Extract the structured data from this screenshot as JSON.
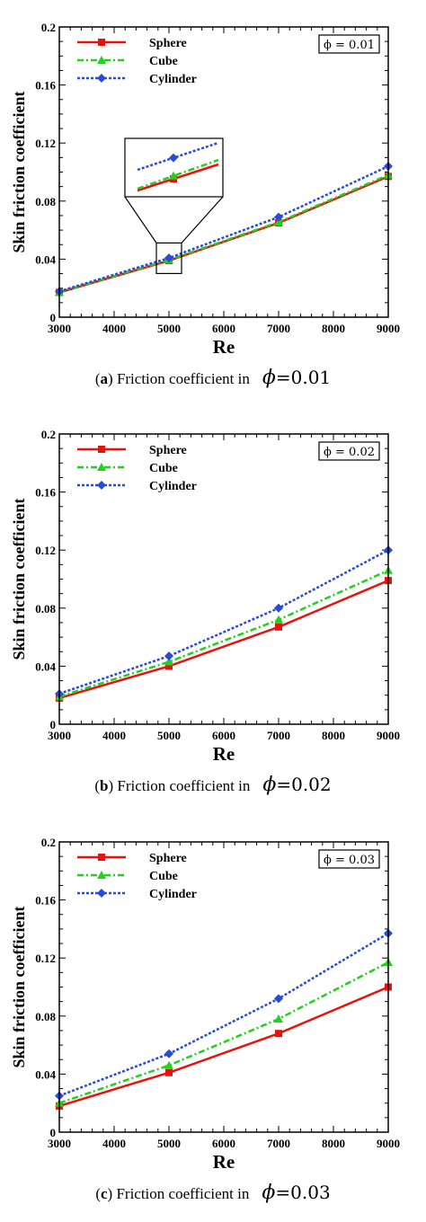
{
  "chart_data": [
    {
      "type": "line",
      "panel_letter": "a",
      "caption_text": "Friction coefficient in",
      "phi_symbol": "ϕ",
      "phi_caption_value": "=0.01",
      "phi_box": "ϕ = 0.01",
      "xlabel": "Re",
      "ylabel": "Skin friction coefficient",
      "xlim": [
        3000,
        9000
      ],
      "ylim": [
        0,
        0.2
      ],
      "xticks": [
        "3000",
        "4000",
        "5000",
        "6000",
        "7000",
        "8000",
        "9000"
      ],
      "yticks": [
        "0",
        "0.04",
        "0.08",
        "0.12",
        "0.16",
        "0.2"
      ],
      "x": [
        3000,
        5000,
        7000,
        9000
      ],
      "legend_position": "top-left",
      "has_inset": true,
      "series": [
        {
          "name": "Sphere",
          "color": "#e8120c",
          "marker": "square",
          "dash": "solid",
          "values": [
            0.017,
            0.039,
            0.065,
            0.097
          ]
        },
        {
          "name": "Cube",
          "color": "#22d01e",
          "marker": "triangle",
          "dash": "dashdot",
          "values": [
            0.0172,
            0.0395,
            0.0655,
            0.098
          ]
        },
        {
          "name": "Cylinder",
          "color": "#2a4bd7",
          "marker": "diamond",
          "dash": "dotted",
          "values": [
            0.0178,
            0.0408,
            0.069,
            0.104
          ]
        }
      ]
    },
    {
      "type": "line",
      "panel_letter": "b",
      "caption_text": "Friction coefficient in",
      "phi_symbol": "ϕ",
      "phi_caption_value": "=0.02",
      "phi_box": "ϕ = 0.02",
      "xlabel": "Re",
      "ylabel": "Skin friction coefficient",
      "xlim": [
        3000,
        9000
      ],
      "ylim": [
        0,
        0.2
      ],
      "xticks": [
        "3000",
        "4000",
        "5000",
        "6000",
        "7000",
        "8000",
        "9000"
      ],
      "yticks": [
        "0",
        "0.04",
        "0.08",
        "0.12",
        "0.16",
        "0.2"
      ],
      "x": [
        3000,
        5000,
        7000,
        9000
      ],
      "legend_position": "top-left",
      "has_inset": false,
      "series": [
        {
          "name": "Sphere",
          "color": "#e8120c",
          "marker": "square",
          "dash": "solid",
          "values": [
            0.018,
            0.04,
            0.067,
            0.099
          ]
        },
        {
          "name": "Cube",
          "color": "#22d01e",
          "marker": "triangle",
          "dash": "dashdot",
          "values": [
            0.019,
            0.043,
            0.072,
            0.106
          ]
        },
        {
          "name": "Cylinder",
          "color": "#2a4bd7",
          "marker": "diamond",
          "dash": "dotted",
          "values": [
            0.021,
            0.047,
            0.08,
            0.12
          ]
        }
      ]
    },
    {
      "type": "line",
      "panel_letter": "c",
      "caption_text": "Friction coefficient in",
      "phi_symbol": "ϕ",
      "phi_caption_value": "=0.03",
      "phi_box": "ϕ = 0.03",
      "xlabel": "Re",
      "ylabel": "Skin friction coefficient",
      "xlim": [
        3000,
        9000
      ],
      "ylim": [
        0,
        0.2
      ],
      "xticks": [
        "3000",
        "4000",
        "5000",
        "6000",
        "7000",
        "8000",
        "9000"
      ],
      "yticks": [
        "0",
        "0.04",
        "0.08",
        "0.12",
        "0.16",
        "0.2"
      ],
      "x": [
        3000,
        5000,
        7000,
        9000
      ],
      "legend_position": "top-left",
      "has_inset": false,
      "series": [
        {
          "name": "Sphere",
          "color": "#e8120c",
          "marker": "square",
          "dash": "solid",
          "values": [
            0.018,
            0.041,
            0.068,
            0.1
          ]
        },
        {
          "name": "Cube",
          "color": "#22d01e",
          "marker": "triangle",
          "dash": "dashdot",
          "values": [
            0.02,
            0.046,
            0.078,
            0.117
          ]
        },
        {
          "name": "Cylinder",
          "color": "#2a4bd7",
          "marker": "diamond",
          "dash": "dotted",
          "values": [
            0.025,
            0.054,
            0.092,
            0.137
          ]
        }
      ]
    }
  ]
}
